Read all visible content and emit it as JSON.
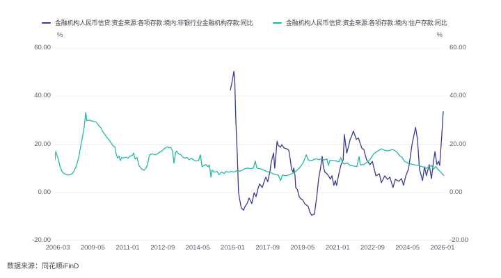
{
  "footer": {
    "source_label": "数据来源：同花顺iFinD"
  },
  "chart_data": {
    "type": "line",
    "title": "",
    "unit_left": "%",
    "unit_right": "%",
    "ylim": [
      -20,
      60
    ],
    "yticks": [
      60,
      40,
      20,
      0,
      -20
    ],
    "ytick_labels": [
      "60.00",
      "40.00",
      "20.00",
      "0.00",
      "-20.00"
    ],
    "xtick_labels": [
      "2006-03",
      "2009-05",
      "2011-01",
      "2012-09",
      "2014-05",
      "2016-01",
      "2017-09",
      "2019-05",
      "2021-01",
      "2022-09",
      "2024-05",
      "2026-01"
    ],
    "grid": true,
    "legend_position": "top",
    "series": [
      {
        "name": "金融机构人民币信贷:资金来源:各项存款:境内:非银行业金融机构存款:同比",
        "color": "#363D8F",
        "points": [
          [
            0.451,
            42.5
          ],
          [
            0.456,
            46.5
          ],
          [
            0.46,
            50.3
          ],
          [
            0.462,
            47.0
          ],
          [
            0.465,
            30.0
          ],
          [
            0.469,
            14.0
          ],
          [
            0.472,
            0.0
          ],
          [
            0.476,
            -4.0
          ],
          [
            0.479,
            -6.5
          ],
          [
            0.485,
            -7.4
          ],
          [
            0.488,
            -6.1
          ],
          [
            0.494,
            -4.6
          ],
          [
            0.499,
            -2.4
          ],
          [
            0.506,
            -4.7
          ],
          [
            0.512,
            -0.2
          ],
          [
            0.517,
            -1.8
          ],
          [
            0.522,
            1.5
          ],
          [
            0.526,
            3.5
          ],
          [
            0.533,
            2.0
          ],
          [
            0.539,
            5.0
          ],
          [
            0.542,
            6.3
          ],
          [
            0.547,
            4.4
          ],
          [
            0.553,
            9.0
          ],
          [
            0.556,
            12.6
          ],
          [
            0.562,
            16.4
          ],
          [
            0.565,
            10.0
          ],
          [
            0.571,
            21.2
          ],
          [
            0.574,
            19.5
          ],
          [
            0.58,
            18.7
          ],
          [
            0.583,
            19.8
          ],
          [
            0.589,
            18.4
          ],
          [
            0.596,
            18.1
          ],
          [
            0.601,
            17.5
          ],
          [
            0.605,
            13.6
          ],
          [
            0.608,
            9.8
          ],
          [
            0.612,
            8.4
          ],
          [
            0.614,
            10.1
          ],
          [
            0.617,
            7.2
          ],
          [
            0.619,
            2.0
          ],
          [
            0.623,
            1.2
          ],
          [
            0.628,
            -1.9
          ],
          [
            0.633,
            -2.8
          ],
          [
            0.637,
            -3.2
          ],
          [
            0.642,
            -4.7
          ],
          [
            0.646,
            -5.2
          ],
          [
            0.651,
            -5.8
          ],
          [
            0.655,
            -8.1
          ],
          [
            0.66,
            -9.5
          ],
          [
            0.667,
            -9.0
          ],
          [
            0.673,
            -1.9
          ],
          [
            0.678,
            5.8
          ],
          [
            0.682,
            9.2
          ],
          [
            0.687,
            15.0
          ],
          [
            0.69,
            10.7
          ],
          [
            0.694,
            8.4
          ],
          [
            0.699,
            7.8
          ],
          [
            0.705,
            6.4
          ],
          [
            0.708,
            5.5
          ],
          [
            0.712,
            6.9
          ],
          [
            0.717,
            2.9
          ],
          [
            0.721,
            4.9
          ],
          [
            0.724,
            2.9
          ],
          [
            0.73,
            7.8
          ],
          [
            0.735,
            11.3
          ],
          [
            0.741,
            13.5
          ],
          [
            0.744,
            24.0
          ],
          [
            0.75,
            16.3
          ],
          [
            0.753,
            18.0
          ],
          [
            0.759,
            22.0
          ],
          [
            0.764,
            24.0
          ],
          [
            0.767,
            25.5
          ],
          [
            0.775,
            22.0
          ],
          [
            0.78,
            22.6
          ],
          [
            0.789,
            18.3
          ],
          [
            0.794,
            17.8
          ],
          [
            0.801,
            13.5
          ],
          [
            0.81,
            11.5
          ],
          [
            0.816,
            12.9
          ],
          [
            0.825,
            6.9
          ],
          [
            0.834,
            7.7
          ],
          [
            0.839,
            4.0
          ],
          [
            0.848,
            6.9
          ],
          [
            0.855,
            5.4
          ],
          [
            0.861,
            6.3
          ],
          [
            0.869,
            2.0
          ],
          [
            0.875,
            5.4
          ],
          [
            0.884,
            4.6
          ],
          [
            0.891,
            5.7
          ],
          [
            0.896,
            2.9
          ],
          [
            0.902,
            6.9
          ],
          [
            0.909,
            9.7
          ],
          [
            0.918,
            20.0
          ],
          [
            0.927,
            27.0
          ],
          [
            0.932,
            22.0
          ],
          [
            0.937,
            9.7
          ],
          [
            0.945,
            4.9
          ],
          [
            0.95,
            10.6
          ],
          [
            0.955,
            6.9
          ],
          [
            0.962,
            11.5
          ],
          [
            0.968,
            5.7
          ],
          [
            0.973,
            12.6
          ],
          [
            0.977,
            16.9
          ],
          [
            0.982,
            11.5
          ],
          [
            0.986,
            12.9
          ],
          [
            0.989,
            11.2
          ],
          [
            0.995,
            25.0
          ],
          [
            0.998,
            33.5
          ]
        ]
      },
      {
        "name": "金融机构人民币信贷:资金来源:各项存款:境内:住户存款:同比",
        "color": "#22B8A6",
        "points": [
          [
            0.0,
            13.5
          ],
          [
            0.002,
            17.0
          ],
          [
            0.009,
            13.6
          ],
          [
            0.013,
            10.7
          ],
          [
            0.018,
            8.7
          ],
          [
            0.023,
            7.8
          ],
          [
            0.032,
            7.2
          ],
          [
            0.039,
            7.3
          ],
          [
            0.045,
            7.8
          ],
          [
            0.05,
            9.2
          ],
          [
            0.056,
            11.5
          ],
          [
            0.061,
            14.5
          ],
          [
            0.066,
            19.0
          ],
          [
            0.072,
            24.0
          ],
          [
            0.075,
            27.0
          ],
          [
            0.079,
            33.2
          ],
          [
            0.082,
            29.8
          ],
          [
            0.088,
            30.0
          ],
          [
            0.093,
            29.8
          ],
          [
            0.098,
            29.5
          ],
          [
            0.106,
            29.2
          ],
          [
            0.111,
            28.0
          ],
          [
            0.118,
            26.8
          ],
          [
            0.123,
            25.2
          ],
          [
            0.129,
            23.8
          ],
          [
            0.136,
            22.3
          ],
          [
            0.141,
            21.4
          ],
          [
            0.149,
            19.4
          ],
          [
            0.154,
            18.8
          ],
          [
            0.157,
            16.2
          ],
          [
            0.161,
            14.2
          ],
          [
            0.165,
            15.1
          ],
          [
            0.168,
            13.2
          ],
          [
            0.172,
            14.5
          ],
          [
            0.177,
            14.3
          ],
          [
            0.182,
            14.6
          ],
          [
            0.188,
            14.2
          ],
          [
            0.193,
            15.1
          ],
          [
            0.199,
            15.3
          ],
          [
            0.202,
            16.4
          ],
          [
            0.206,
            13.8
          ],
          [
            0.211,
            14.5
          ],
          [
            0.216,
            11.2
          ],
          [
            0.222,
            9.8
          ],
          [
            0.229,
            9.2
          ],
          [
            0.234,
            10.1
          ],
          [
            0.238,
            11.5
          ],
          [
            0.243,
            15.6
          ],
          [
            0.25,
            16.0
          ],
          [
            0.256,
            15.6
          ],
          [
            0.261,
            15.8
          ],
          [
            0.268,
            16.6
          ],
          [
            0.274,
            17.1
          ],
          [
            0.279,
            17.9
          ],
          [
            0.284,
            18.5
          ],
          [
            0.29,
            18.9
          ],
          [
            0.293,
            18.5
          ],
          [
            0.297,
            18.8
          ],
          [
            0.302,
            17.4
          ],
          [
            0.306,
            12.1
          ],
          [
            0.31,
            16.5
          ],
          [
            0.313,
            17.1
          ],
          [
            0.318,
            16.0
          ],
          [
            0.324,
            15.6
          ],
          [
            0.329,
            14.5
          ],
          [
            0.335,
            14.2
          ],
          [
            0.34,
            14.5
          ],
          [
            0.345,
            13.5
          ],
          [
            0.351,
            14.2
          ],
          [
            0.356,
            13.5
          ],
          [
            0.363,
            13.0
          ],
          [
            0.369,
            13.2
          ],
          [
            0.374,
            15.6
          ],
          [
            0.378,
            10.6
          ],
          [
            0.383,
            11.2
          ],
          [
            0.388,
            11.5
          ],
          [
            0.394,
            10.6
          ],
          [
            0.397,
            11.4
          ],
          [
            0.401,
            6.3
          ],
          [
            0.404,
            9.2
          ],
          [
            0.41,
            8.4
          ],
          [
            0.417,
            8.7
          ],
          [
            0.422,
            7.3
          ],
          [
            0.428,
            8.4
          ],
          [
            0.435,
            7.8
          ],
          [
            0.44,
            8.7
          ],
          [
            0.447,
            8.4
          ],
          [
            0.454,
            8.7
          ],
          [
            0.46,
            8.4
          ],
          [
            0.465,
            8.8
          ],
          [
            0.47,
            9.2
          ],
          [
            0.476,
            8.8
          ],
          [
            0.481,
            9.2
          ],
          [
            0.488,
            9.8
          ],
          [
            0.496,
            10.1
          ],
          [
            0.503,
            9.8
          ],
          [
            0.51,
            10.1
          ],
          [
            0.515,
            13.0
          ],
          [
            0.519,
            10.1
          ],
          [
            0.524,
            9.9
          ],
          [
            0.531,
            9.7
          ],
          [
            0.537,
            9.2
          ],
          [
            0.544,
            8.7
          ],
          [
            0.551,
            8.4
          ],
          [
            0.56,
            7.8
          ],
          [
            0.569,
            7.3
          ],
          [
            0.574,
            7.2
          ],
          [
            0.58,
            4.9
          ],
          [
            0.585,
            7.2
          ],
          [
            0.592,
            6.9
          ],
          [
            0.601,
            7.2
          ],
          [
            0.61,
            7.8
          ],
          [
            0.619,
            8.7
          ],
          [
            0.628,
            10.1
          ],
          [
            0.635,
            11.5
          ],
          [
            0.64,
            13.0
          ],
          [
            0.646,
            15.6
          ],
          [
            0.651,
            13.5
          ],
          [
            0.658,
            13.1
          ],
          [
            0.664,
            13.5
          ],
          [
            0.671,
            14.0
          ],
          [
            0.678,
            13.6
          ],
          [
            0.685,
            13.9
          ],
          [
            0.692,
            13.5
          ],
          [
            0.699,
            13.9
          ],
          [
            0.703,
            11.2
          ],
          [
            0.707,
            13.4
          ],
          [
            0.714,
            13.2
          ],
          [
            0.723,
            13.0
          ],
          [
            0.73,
            12.7
          ],
          [
            0.735,
            14.4
          ],
          [
            0.739,
            12.4
          ],
          [
            0.744,
            11.8
          ],
          [
            0.751,
            12.2
          ],
          [
            0.759,
            11.2
          ],
          [
            0.767,
            11.0
          ],
          [
            0.776,
            10.7
          ],
          [
            0.782,
            14.9
          ],
          [
            0.785,
            11.4
          ],
          [
            0.794,
            11.6
          ],
          [
            0.803,
            12.6
          ],
          [
            0.81,
            13.6
          ],
          [
            0.819,
            15.9
          ],
          [
            0.83,
            17.2
          ],
          [
            0.839,
            18.0
          ],
          [
            0.848,
            17.5
          ],
          [
            0.855,
            17.2
          ],
          [
            0.861,
            17.5
          ],
          [
            0.868,
            17.8
          ],
          [
            0.875,
            17.2
          ],
          [
            0.88,
            16.5
          ],
          [
            0.886,
            15.3
          ],
          [
            0.893,
            14.4
          ],
          [
            0.898,
            13.0
          ],
          [
            0.903,
            12.5
          ],
          [
            0.911,
            12.0
          ],
          [
            0.916,
            11.8
          ],
          [
            0.921,
            11.5
          ],
          [
            0.929,
            11.3
          ],
          [
            0.934,
            11.2
          ],
          [
            0.941,
            10.8
          ],
          [
            0.948,
            10.5
          ],
          [
            0.955,
            10.0
          ],
          [
            0.962,
            10.6
          ],
          [
            0.968,
            11.2
          ],
          [
            0.973,
            9.6
          ],
          [
            0.979,
            10.8
          ],
          [
            0.984,
            9.6
          ],
          [
            0.991,
            8.6
          ],
          [
            0.996,
            7.6
          ],
          [
            1.0,
            7.0
          ]
        ]
      }
    ]
  }
}
